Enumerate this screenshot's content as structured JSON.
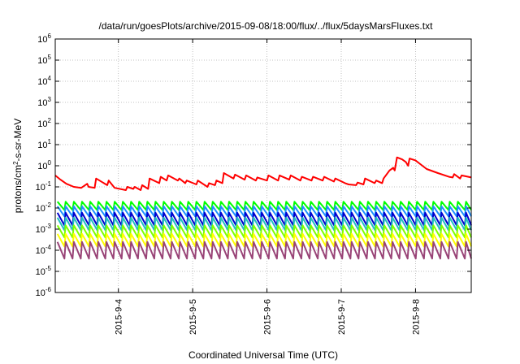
{
  "chart_data": {
    "type": "line",
    "title": "/data/run/goesPlots/archive/2015-09-08/18:00/flux/../flux/5daysMarsFluxes.txt",
    "xlabel": "Coordinated Universal Time (UTC)",
    "ylabel_parts": {
      "base": "protons/cm",
      "sup": "2",
      "rest": "-s-sr-MeV"
    },
    "y_scale": "log",
    "ylim_exponents": [
      -6,
      6
    ],
    "y_tick_exponents": [
      -6,
      -5,
      -4,
      -3,
      -2,
      -1,
      0,
      1,
      2,
      3,
      4,
      5,
      6
    ],
    "xlim": [
      3.15,
      8.75
    ],
    "x_unit": "day of September 2015",
    "x_tick_labels": [
      {
        "x": 4,
        "label": "2015-9-4"
      },
      {
        "x": 5,
        "label": "2015-9-5"
      },
      {
        "x": 6,
        "label": "2015-9-6"
      },
      {
        "x": 7,
        "label": "2015-9-7"
      },
      {
        "x": 8,
        "label": "2015-9-8"
      }
    ],
    "grid": true,
    "legend": "none",
    "red_series": {
      "color": "#ff0000",
      "points": [
        [
          3.15,
          0.35
        ],
        [
          3.22,
          0.22
        ],
        [
          3.3,
          0.14
        ],
        [
          3.4,
          0.1
        ],
        [
          3.5,
          0.09
        ],
        [
          3.58,
          0.14
        ],
        [
          3.6,
          0.1
        ],
        [
          3.68,
          0.09
        ],
        [
          3.7,
          0.25
        ],
        [
          3.85,
          0.12
        ],
        [
          3.87,
          0.2
        ],
        [
          3.95,
          0.09
        ],
        [
          4.1,
          0.07
        ],
        [
          4.12,
          0.1
        ],
        [
          4.2,
          0.08
        ],
        [
          4.22,
          0.1
        ],
        [
          4.3,
          0.07
        ],
        [
          4.32,
          0.12
        ],
        [
          4.4,
          0.08
        ],
        [
          4.42,
          0.25
        ],
        [
          4.55,
          0.15
        ],
        [
          4.57,
          0.3
        ],
        [
          4.65,
          0.2
        ],
        [
          4.67,
          0.35
        ],
        [
          4.8,
          0.2
        ],
        [
          4.82,
          0.25
        ],
        [
          4.9,
          0.15
        ],
        [
          4.92,
          0.2
        ],
        [
          5.05,
          0.13
        ],
        [
          5.07,
          0.2
        ],
        [
          5.2,
          0.1
        ],
        [
          5.22,
          0.15
        ],
        [
          5.3,
          0.12
        ],
        [
          5.32,
          0.2
        ],
        [
          5.4,
          0.15
        ],
        [
          5.42,
          0.45
        ],
        [
          5.55,
          0.25
        ],
        [
          5.57,
          0.38
        ],
        [
          5.7,
          0.22
        ],
        [
          5.72,
          0.35
        ],
        [
          5.85,
          0.2
        ],
        [
          5.87,
          0.28
        ],
        [
          6.0,
          0.2
        ],
        [
          6.02,
          0.35
        ],
        [
          6.15,
          0.2
        ],
        [
          6.17,
          0.35
        ],
        [
          6.3,
          0.22
        ],
        [
          6.32,
          0.35
        ],
        [
          6.45,
          0.2
        ],
        [
          6.47,
          0.3
        ],
        [
          6.6,
          0.2
        ],
        [
          6.62,
          0.3
        ],
        [
          6.75,
          0.2
        ],
        [
          6.77,
          0.3
        ],
        [
          6.9,
          0.18
        ],
        [
          6.92,
          0.25
        ],
        [
          7.05,
          0.15
        ],
        [
          7.1,
          0.13
        ],
        [
          7.2,
          0.12
        ],
        [
          7.22,
          0.16
        ],
        [
          7.3,
          0.13
        ],
        [
          7.32,
          0.25
        ],
        [
          7.45,
          0.15
        ],
        [
          7.47,
          0.2
        ],
        [
          7.55,
          0.15
        ],
        [
          7.57,
          0.25
        ],
        [
          7.65,
          0.6
        ],
        [
          7.7,
          0.8
        ],
        [
          7.72,
          0.6
        ],
        [
          7.75,
          2.5
        ],
        [
          7.82,
          2.0
        ],
        [
          7.87,
          1.5
        ],
        [
          7.9,
          1.0
        ],
        [
          7.92,
          2.2
        ],
        [
          8.0,
          1.8
        ],
        [
          8.05,
          1.3
        ],
        [
          8.15,
          0.7
        ],
        [
          8.3,
          0.45
        ],
        [
          8.45,
          0.3
        ],
        [
          8.5,
          0.28
        ],
        [
          8.52,
          0.4
        ],
        [
          8.6,
          0.25
        ],
        [
          8.62,
          0.35
        ],
        [
          8.75,
          0.28
        ]
      ]
    },
    "sawtooth_series": [
      {
        "color": "#00ff00",
        "low": 0.008,
        "high": 0.02
      },
      {
        "color": "#1e90ff",
        "low": 0.004,
        "high": 0.012
      },
      {
        "color": "#0000cd",
        "low": 0.0015,
        "high": 0.006
      },
      {
        "color": "#20c0c0",
        "low": 0.0009,
        "high": 0.0035
      },
      {
        "color": "#7fff00",
        "low": 0.0004,
        "high": 0.0015
      },
      {
        "color": "#ffff00",
        "low": 0.00015,
        "high": 0.0006
      },
      {
        "color": "#994477",
        "low": 4e-05,
        "high": 0.00025
      }
    ],
    "sawtooth_period_days": 0.11,
    "sawtooth_start": 3.18,
    "sawtooth_end": 8.75
  }
}
